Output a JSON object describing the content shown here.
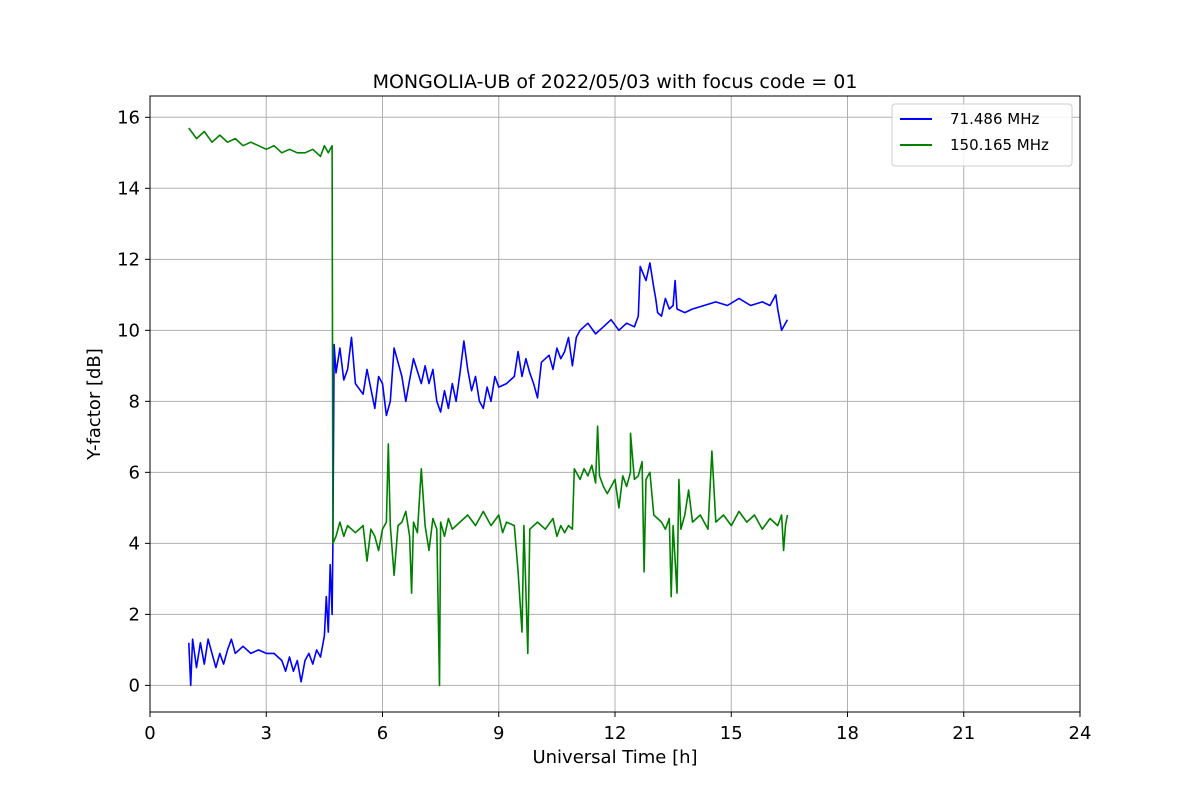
{
  "chart_data": {
    "type": "line",
    "title": "MONGOLIA-UB of 2022/05/03 with focus code = 01",
    "xlabel": "Universal Time [h]",
    "ylabel": "Y-factor [dB]",
    "xlim": [
      0,
      24
    ],
    "ylim": [
      -0.75,
      16.6
    ],
    "x_ticks": [
      0,
      3,
      6,
      9,
      12,
      15,
      18,
      21,
      24
    ],
    "y_ticks": [
      0,
      2,
      4,
      6,
      8,
      10,
      12,
      14,
      16
    ],
    "x_tick_labels": [
      "0",
      "3",
      "6",
      "9",
      "12",
      "15",
      "18",
      "21",
      "24"
    ],
    "y_tick_labels": [
      "0",
      "2",
      "4",
      "6",
      "8",
      "10",
      "12",
      "14",
      "16"
    ],
    "grid": true,
    "legend_position": "top-right",
    "series": [
      {
        "name": "  71.486 MHz",
        "color": "#0000ff",
        "points": [
          [
            1.0,
            1.2
          ],
          [
            1.05,
            0.0
          ],
          [
            1.1,
            1.3
          ],
          [
            1.2,
            0.5
          ],
          [
            1.3,
            1.2
          ],
          [
            1.4,
            0.6
          ],
          [
            1.5,
            1.3
          ],
          [
            1.6,
            0.9
          ],
          [
            1.7,
            0.5
          ],
          [
            1.8,
            0.9
          ],
          [
            1.9,
            0.6
          ],
          [
            2.0,
            1.0
          ],
          [
            2.1,
            1.3
          ],
          [
            2.2,
            0.9
          ],
          [
            2.4,
            1.1
          ],
          [
            2.6,
            0.9
          ],
          [
            2.8,
            1.0
          ],
          [
            3.0,
            0.9
          ],
          [
            3.2,
            0.9
          ],
          [
            3.4,
            0.7
          ],
          [
            3.5,
            0.4
          ],
          [
            3.6,
            0.8
          ],
          [
            3.7,
            0.4
          ],
          [
            3.8,
            0.7
          ],
          [
            3.9,
            0.1
          ],
          [
            4.0,
            0.7
          ],
          [
            4.1,
            0.9
          ],
          [
            4.2,
            0.6
          ],
          [
            4.3,
            1.0
          ],
          [
            4.4,
            0.8
          ],
          [
            4.5,
            1.4
          ],
          [
            4.55,
            2.5
          ],
          [
            4.6,
            1.5
          ],
          [
            4.65,
            3.4
          ],
          [
            4.7,
            2.0
          ],
          [
            4.72,
            4.0
          ],
          [
            4.75,
            9.6
          ],
          [
            4.8,
            8.8
          ],
          [
            4.9,
            9.5
          ],
          [
            5.0,
            8.6
          ],
          [
            5.1,
            8.9
          ],
          [
            5.2,
            9.8
          ],
          [
            5.3,
            8.5
          ],
          [
            5.5,
            8.2
          ],
          [
            5.6,
            8.9
          ],
          [
            5.8,
            7.8
          ],
          [
            5.9,
            8.7
          ],
          [
            6.0,
            8.5
          ],
          [
            6.1,
            7.6
          ],
          [
            6.2,
            8.0
          ],
          [
            6.3,
            9.5
          ],
          [
            6.4,
            9.1
          ],
          [
            6.5,
            8.7
          ],
          [
            6.6,
            8.0
          ],
          [
            6.7,
            8.6
          ],
          [
            6.8,
            9.2
          ],
          [
            7.0,
            8.5
          ],
          [
            7.1,
            9.0
          ],
          [
            7.2,
            8.5
          ],
          [
            7.3,
            8.9
          ],
          [
            7.4,
            8.0
          ],
          [
            7.5,
            7.7
          ],
          [
            7.6,
            8.3
          ],
          [
            7.7,
            7.8
          ],
          [
            7.8,
            8.5
          ],
          [
            7.9,
            8.0
          ],
          [
            8.0,
            8.8
          ],
          [
            8.1,
            9.7
          ],
          [
            8.2,
            8.9
          ],
          [
            8.3,
            8.3
          ],
          [
            8.4,
            8.7
          ],
          [
            8.5,
            8.0
          ],
          [
            8.6,
            7.8
          ],
          [
            8.7,
            8.4
          ],
          [
            8.8,
            8.0
          ],
          [
            8.9,
            8.7
          ],
          [
            9.0,
            8.4
          ],
          [
            9.2,
            8.5
          ],
          [
            9.4,
            8.7
          ],
          [
            9.5,
            9.4
          ],
          [
            9.6,
            8.7
          ],
          [
            9.7,
            9.2
          ],
          [
            9.8,
            8.8
          ],
          [
            9.9,
            8.5
          ],
          [
            10.0,
            8.1
          ],
          [
            10.1,
            9.1
          ],
          [
            10.3,
            9.3
          ],
          [
            10.4,
            8.9
          ],
          [
            10.5,
            9.5
          ],
          [
            10.6,
            9.2
          ],
          [
            10.7,
            9.4
          ],
          [
            10.8,
            9.8
          ],
          [
            10.9,
            9.0
          ],
          [
            11.0,
            9.8
          ],
          [
            11.1,
            10.0
          ],
          [
            11.3,
            10.2
          ],
          [
            11.5,
            9.9
          ],
          [
            11.7,
            10.1
          ],
          [
            11.9,
            10.3
          ],
          [
            12.1,
            10.0
          ],
          [
            12.3,
            10.2
          ],
          [
            12.5,
            10.1
          ],
          [
            12.6,
            10.4
          ],
          [
            12.65,
            11.8
          ],
          [
            12.8,
            11.4
          ],
          [
            12.9,
            11.9
          ],
          [
            13.0,
            11.2
          ],
          [
            13.05,
            10.9
          ],
          [
            13.1,
            10.5
          ],
          [
            13.2,
            10.4
          ],
          [
            13.3,
            10.9
          ],
          [
            13.4,
            10.6
          ],
          [
            13.5,
            10.7
          ],
          [
            13.55,
            11.4
          ],
          [
            13.6,
            10.6
          ],
          [
            13.8,
            10.5
          ],
          [
            14.0,
            10.6
          ],
          [
            14.3,
            10.7
          ],
          [
            14.6,
            10.8
          ],
          [
            14.9,
            10.7
          ],
          [
            15.2,
            10.9
          ],
          [
            15.5,
            10.7
          ],
          [
            15.8,
            10.8
          ],
          [
            16.0,
            10.7
          ],
          [
            16.15,
            11.0
          ],
          [
            16.2,
            10.6
          ],
          [
            16.3,
            10.0
          ],
          [
            16.45,
            10.3
          ]
        ]
      },
      {
        "name": "150.165 MHz",
        "color": "#008000",
        "points": [
          [
            1.0,
            15.7
          ],
          [
            1.2,
            15.4
          ],
          [
            1.4,
            15.6
          ],
          [
            1.6,
            15.3
          ],
          [
            1.8,
            15.5
          ],
          [
            2.0,
            15.3
          ],
          [
            2.2,
            15.4
          ],
          [
            2.4,
            15.2
          ],
          [
            2.6,
            15.3
          ],
          [
            2.8,
            15.2
          ],
          [
            3.0,
            15.1
          ],
          [
            3.2,
            15.2
          ],
          [
            3.4,
            15.0
          ],
          [
            3.6,
            15.1
          ],
          [
            3.8,
            15.0
          ],
          [
            4.0,
            15.0
          ],
          [
            4.2,
            15.1
          ],
          [
            4.4,
            14.9
          ],
          [
            4.5,
            15.2
          ],
          [
            4.6,
            15.0
          ],
          [
            4.7,
            15.2
          ],
          [
            4.72,
            4.0
          ],
          [
            4.8,
            4.2
          ],
          [
            4.9,
            4.6
          ],
          [
            5.0,
            4.2
          ],
          [
            5.1,
            4.5
          ],
          [
            5.3,
            4.3
          ],
          [
            5.5,
            4.5
          ],
          [
            5.6,
            3.5
          ],
          [
            5.7,
            4.4
          ],
          [
            5.8,
            4.2
          ],
          [
            5.9,
            3.8
          ],
          [
            6.0,
            4.4
          ],
          [
            6.1,
            4.6
          ],
          [
            6.15,
            6.8
          ],
          [
            6.2,
            4.5
          ],
          [
            6.3,
            3.1
          ],
          [
            6.4,
            4.5
          ],
          [
            6.5,
            4.6
          ],
          [
            6.6,
            4.9
          ],
          [
            6.7,
            4.2
          ],
          [
            6.75,
            2.6
          ],
          [
            6.8,
            4.6
          ],
          [
            6.9,
            4.3
          ],
          [
            7.0,
            6.1
          ],
          [
            7.1,
            4.5
          ],
          [
            7.2,
            3.8
          ],
          [
            7.3,
            4.7
          ],
          [
            7.4,
            4.4
          ],
          [
            7.47,
            0.0
          ],
          [
            7.5,
            4.6
          ],
          [
            7.6,
            4.2
          ],
          [
            7.7,
            4.7
          ],
          [
            7.8,
            4.4
          ],
          [
            8.0,
            4.6
          ],
          [
            8.2,
            4.8
          ],
          [
            8.4,
            4.5
          ],
          [
            8.6,
            4.9
          ],
          [
            8.8,
            4.5
          ],
          [
            9.0,
            4.8
          ],
          [
            9.1,
            4.3
          ],
          [
            9.2,
            4.6
          ],
          [
            9.4,
            4.5
          ],
          [
            9.5,
            3.2
          ],
          [
            9.6,
            1.5
          ],
          [
            9.65,
            4.5
          ],
          [
            9.75,
            0.9
          ],
          [
            9.8,
            4.4
          ],
          [
            10.0,
            4.6
          ],
          [
            10.2,
            4.4
          ],
          [
            10.4,
            4.7
          ],
          [
            10.5,
            4.2
          ],
          [
            10.6,
            4.5
          ],
          [
            10.7,
            4.3
          ],
          [
            10.8,
            4.5
          ],
          [
            10.9,
            4.4
          ],
          [
            10.95,
            6.1
          ],
          [
            11.1,
            5.8
          ],
          [
            11.2,
            6.1
          ],
          [
            11.3,
            5.9
          ],
          [
            11.4,
            6.2
          ],
          [
            11.5,
            5.7
          ],
          [
            11.55,
            7.3
          ],
          [
            11.6,
            5.9
          ],
          [
            11.7,
            5.6
          ],
          [
            11.8,
            5.4
          ],
          [
            12.0,
            5.8
          ],
          [
            12.1,
            5.0
          ],
          [
            12.2,
            5.9
          ],
          [
            12.3,
            5.6
          ],
          [
            12.4,
            6.0
          ],
          [
            12.4,
            7.1
          ],
          [
            12.5,
            5.8
          ],
          [
            12.6,
            5.9
          ],
          [
            12.7,
            6.3
          ],
          [
            12.75,
            3.2
          ],
          [
            12.8,
            5.8
          ],
          [
            12.9,
            6.0
          ],
          [
            13.0,
            4.8
          ],
          [
            13.1,
            4.7
          ],
          [
            13.2,
            4.6
          ],
          [
            13.3,
            4.4
          ],
          [
            13.4,
            4.7
          ],
          [
            13.45,
            2.5
          ],
          [
            13.5,
            4.5
          ],
          [
            13.6,
            2.6
          ],
          [
            13.65,
            5.8
          ],
          [
            13.7,
            4.4
          ],
          [
            13.8,
            4.8
          ],
          [
            13.9,
            5.5
          ],
          [
            14.0,
            4.6
          ],
          [
            14.2,
            4.8
          ],
          [
            14.4,
            4.4
          ],
          [
            14.5,
            6.6
          ],
          [
            14.6,
            4.6
          ],
          [
            14.8,
            4.8
          ],
          [
            15.0,
            4.5
          ],
          [
            15.2,
            4.9
          ],
          [
            15.4,
            4.6
          ],
          [
            15.6,
            4.8
          ],
          [
            15.8,
            4.4
          ],
          [
            16.0,
            4.7
          ],
          [
            16.2,
            4.5
          ],
          [
            16.3,
            4.8
          ],
          [
            16.35,
            3.8
          ],
          [
            16.4,
            4.5
          ],
          [
            16.45,
            4.8
          ]
        ]
      }
    ]
  }
}
